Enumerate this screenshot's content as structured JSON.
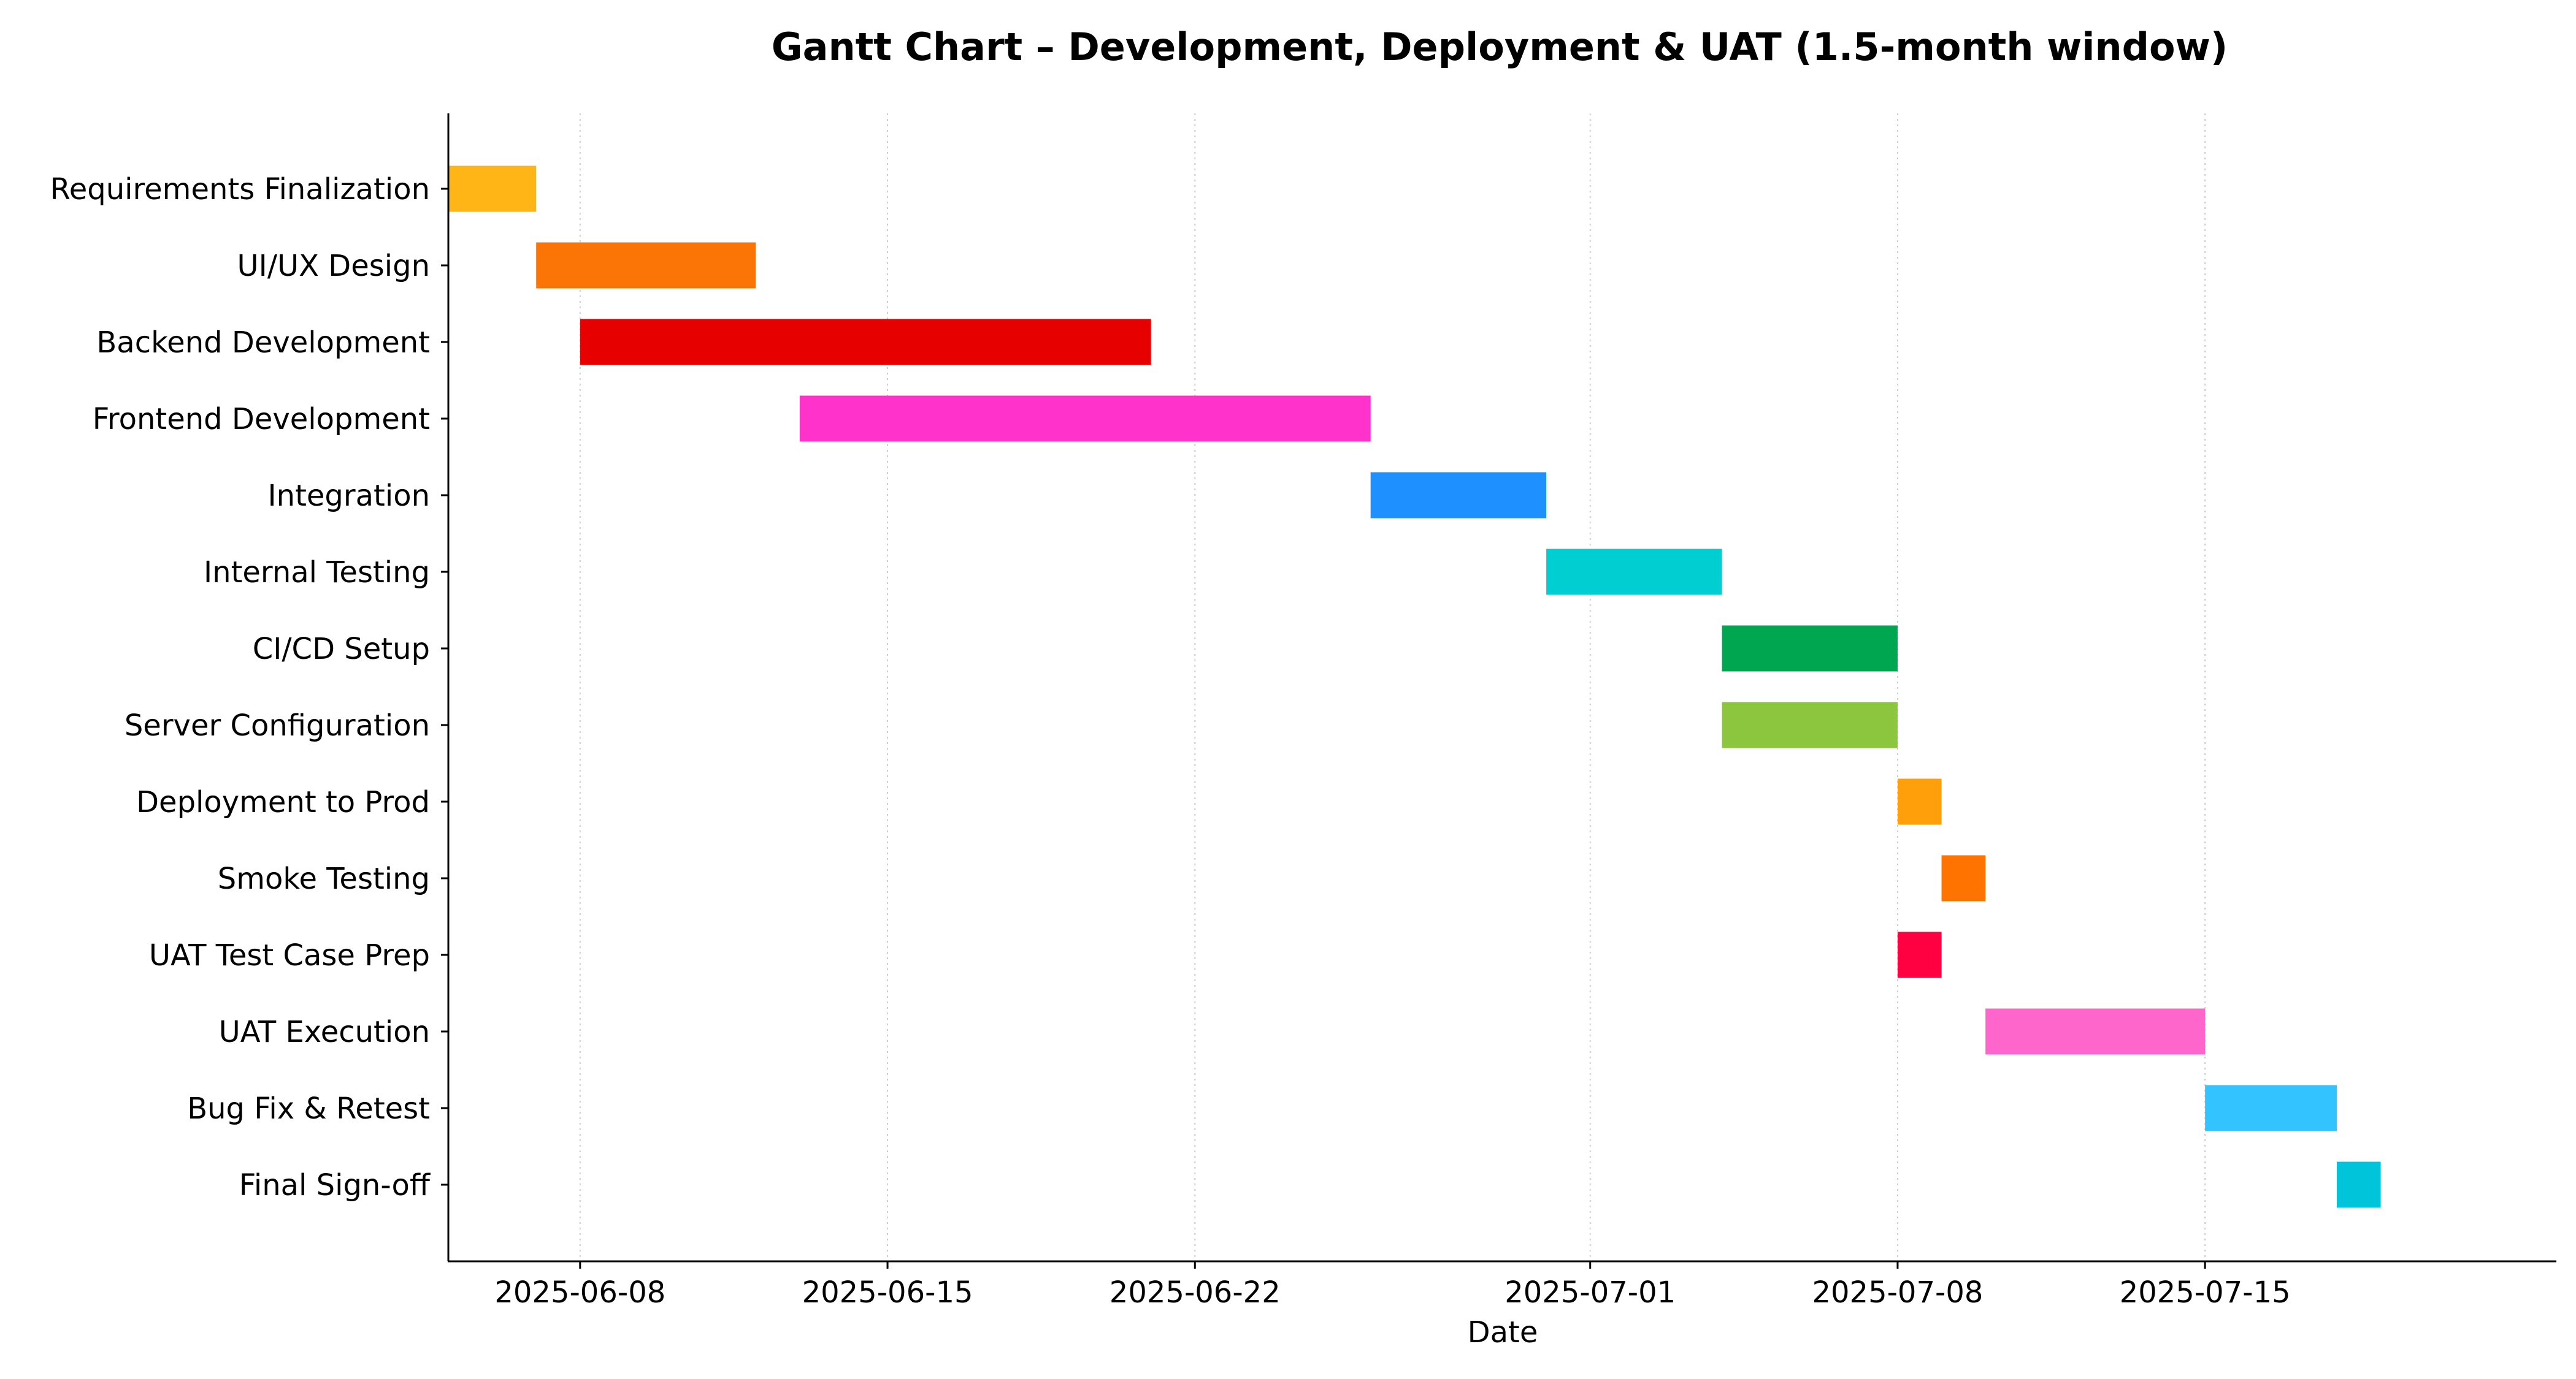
{
  "chart_data": {
    "type": "gantt",
    "title": "Gantt Chart – Development, Deployment & UAT (1.5-month window)",
    "xlabel": "Date",
    "ylabel": "",
    "x_axis_type": "date",
    "xlim": [
      "2025-06-05",
      "2025-07-23"
    ],
    "x_ticks": [
      "2025-06-08",
      "2025-06-15",
      "2025-06-22",
      "2025-07-01",
      "2025-07-08",
      "2025-07-15"
    ],
    "grid": {
      "x": true,
      "y": false,
      "style": "dotted"
    },
    "legend": "none",
    "tasks": [
      {
        "name": "Requirements Finalization",
        "start": "2025-06-05",
        "end": "2025-06-07",
        "color": "#FFB515"
      },
      {
        "name": "UI/UX Design",
        "start": "2025-06-07",
        "end": "2025-06-12",
        "color": "#FA7406"
      },
      {
        "name": "Backend Development",
        "start": "2025-06-08",
        "end": "2025-06-21",
        "color": "#E60000"
      },
      {
        "name": "Frontend Development",
        "start": "2025-06-13",
        "end": "2025-06-26",
        "color": "#FF33CC"
      },
      {
        "name": "Integration",
        "start": "2025-06-26",
        "end": "2025-06-30",
        "color": "#1E90FF"
      },
      {
        "name": "Internal Testing",
        "start": "2025-06-30",
        "end": "2025-07-04",
        "color": "#00CED1"
      },
      {
        "name": "CI/CD Setup",
        "start": "2025-07-04",
        "end": "2025-07-08",
        "color": "#00A650"
      },
      {
        "name": "Server Configuration",
        "start": "2025-07-04",
        "end": "2025-07-08",
        "color": "#8CC63E"
      },
      {
        "name": "Deployment to Prod",
        "start": "2025-07-08",
        "end": "2025-07-09",
        "color": "#FFA00A"
      },
      {
        "name": "Smoke Testing",
        "start": "2025-07-09",
        "end": "2025-07-10",
        "color": "#FF7400"
      },
      {
        "name": "UAT Test Case Prep",
        "start": "2025-07-08",
        "end": "2025-07-09",
        "color": "#FF0040"
      },
      {
        "name": "UAT Execution",
        "start": "2025-07-10",
        "end": "2025-07-15",
        "color": "#FF66CC"
      },
      {
        "name": "Bug Fix & Retest",
        "start": "2025-07-15",
        "end": "2025-07-18",
        "color": "#33C3FF"
      },
      {
        "name": "Final Sign-off",
        "start": "2025-07-18",
        "end": "2025-07-19",
        "color": "#00C4DA"
      }
    ],
    "colors": {
      "axis": "#000000",
      "grid": "#cccccc",
      "background": "#ffffff"
    }
  }
}
